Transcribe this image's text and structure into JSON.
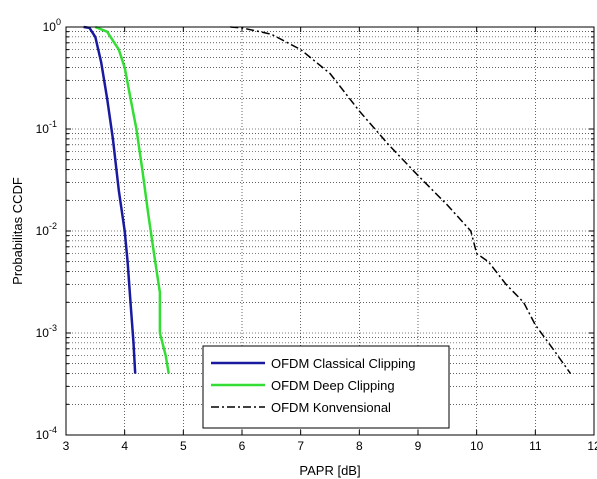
{
  "chart_data": {
    "type": "line",
    "xlabel": "PAPR [dB]",
    "ylabel": "Probabilitas CCDF",
    "xlim": [
      3,
      12
    ],
    "ylim": [
      0.0001,
      1
    ],
    "yscale": "log",
    "grid": true,
    "legend_position": "bottom-center",
    "x_ticks": [
      "3",
      "4",
      "5",
      "6",
      "7",
      "8",
      "9",
      "10",
      "11",
      "12"
    ],
    "y_ticks": [
      {
        "base": "10",
        "exp": "0",
        "value": 1
      },
      {
        "base": "10",
        "exp": "-1",
        "value": 0.1
      },
      {
        "base": "10",
        "exp": "-2",
        "value": 0.01
      },
      {
        "base": "10",
        "exp": "-3",
        "value": 0.001
      },
      {
        "base": "10",
        "exp": "-4",
        "value": 0.0001
      }
    ],
    "series": [
      {
        "name": "OFDM  Classical Clipping",
        "color": "#1a1aa0",
        "style": "solid",
        "x": [
          3.3,
          3.4,
          3.5,
          3.6,
          3.7,
          3.8,
          3.9,
          4.0,
          4.05,
          4.1,
          4.15,
          4.18
        ],
        "y": [
          1.0,
          0.98,
          0.8,
          0.45,
          0.2,
          0.08,
          0.025,
          0.01,
          0.005,
          0.002,
          0.0008,
          0.0004
        ]
      },
      {
        "name": "OFDM  Deep Clipping",
        "color": "#33dd33",
        "style": "solid",
        "x": [
          3.5,
          3.7,
          3.9,
          4.0,
          4.1,
          4.2,
          4.3,
          4.4,
          4.5,
          4.6,
          4.6,
          4.7,
          4.75
        ],
        "y": [
          1.0,
          0.9,
          0.6,
          0.4,
          0.2,
          0.1,
          0.04,
          0.015,
          0.006,
          0.0025,
          0.001,
          0.0006,
          0.0004
        ]
      },
      {
        "name": "OFDM Konvensional",
        "color": "#000000",
        "style": "dashdot",
        "x": [
          5.8,
          6.0,
          6.5,
          7.0,
          7.5,
          8.0,
          8.5,
          9.0,
          9.5,
          9.9,
          10.0,
          10.2,
          10.5,
          10.8,
          11.0,
          11.3,
          11.6
        ],
        "y": [
          1.0,
          0.98,
          0.85,
          0.6,
          0.35,
          0.15,
          0.07,
          0.035,
          0.018,
          0.01,
          0.006,
          0.005,
          0.003,
          0.002,
          0.0012,
          0.0007,
          0.0004
        ]
      }
    ]
  }
}
